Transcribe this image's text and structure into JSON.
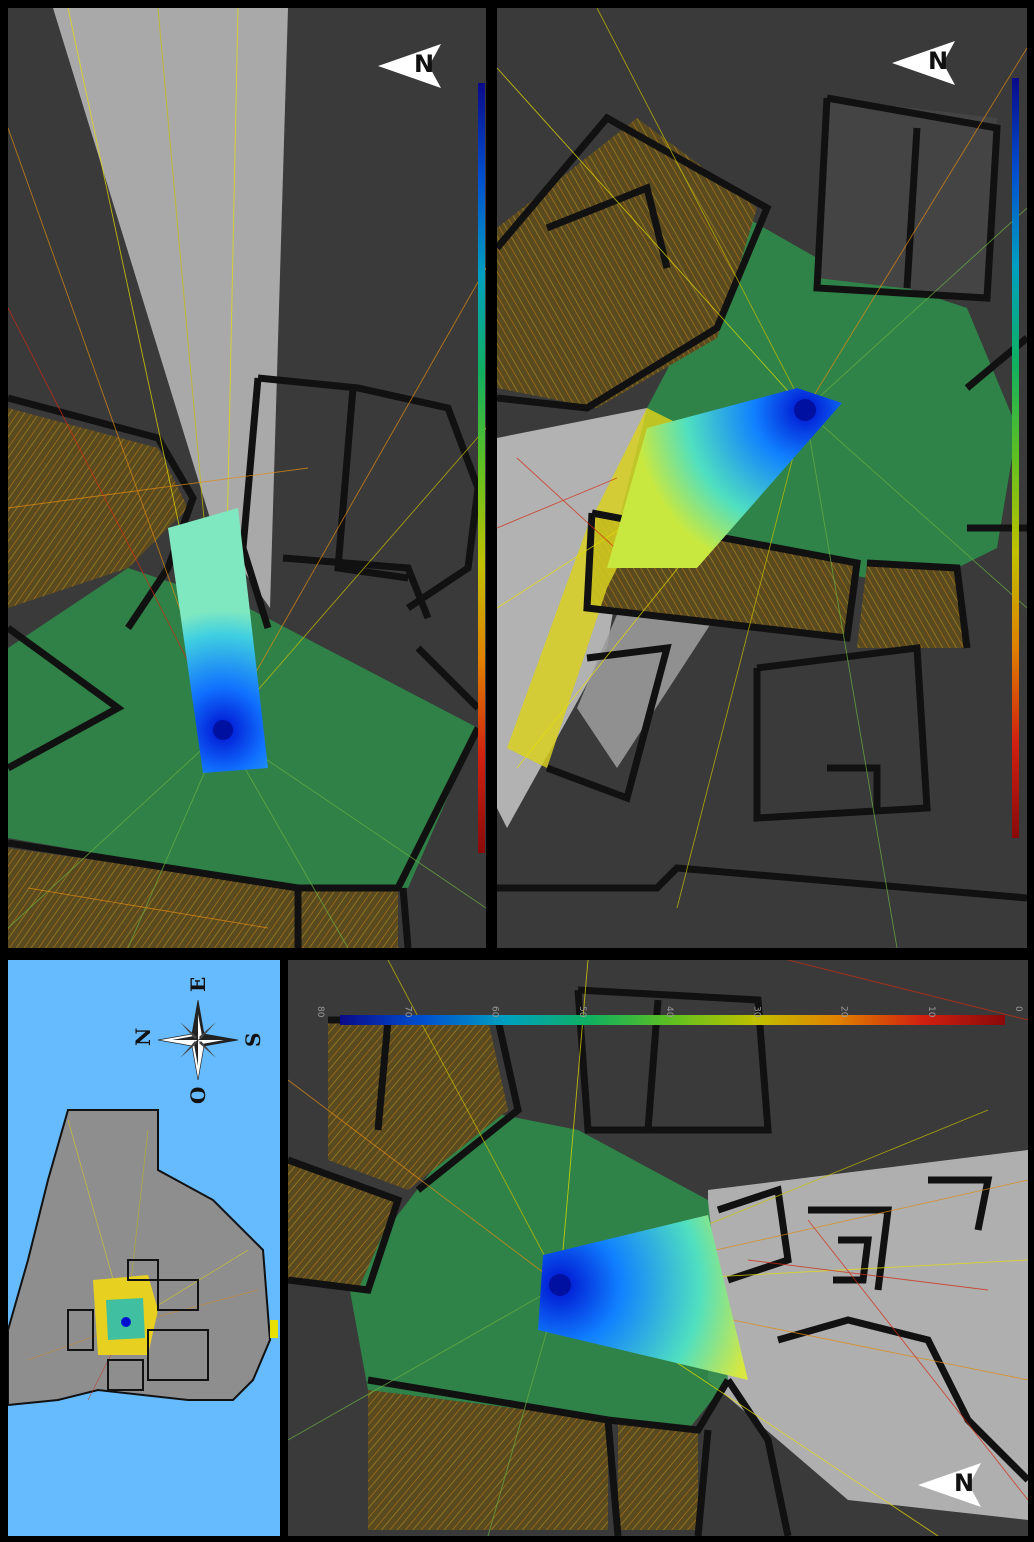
{
  "colorbar": {
    "ticks": [
      "80",
      "70",
      "60",
      "50",
      "40",
      "30",
      "20",
      "10",
      "0"
    ],
    "colors": [
      "#0a0a8a",
      "#0050d0",
      "#00a0c0",
      "#10b060",
      "#60c020",
      "#c0c000",
      "#e08000",
      "#d02010",
      "#8a0a0a"
    ]
  },
  "north_label": "N",
  "compass": {
    "north": "N",
    "east": "E",
    "south": "S",
    "west": "O"
  },
  "palette": {
    "building_wall": "#111111",
    "ground": "#3a3a3a",
    "lit_ground": "#7a7a7a",
    "water": "#66bbff",
    "sound_green": "#3aa060",
    "sound_yellow": "#e8e000",
    "sound_orange": "#e08a10",
    "sound_red": "#d02a10",
    "source_blue": "#0010d0"
  },
  "icons": [
    "north-arrow-icon",
    "compass-rose-icon",
    "sound-source-icon"
  ]
}
